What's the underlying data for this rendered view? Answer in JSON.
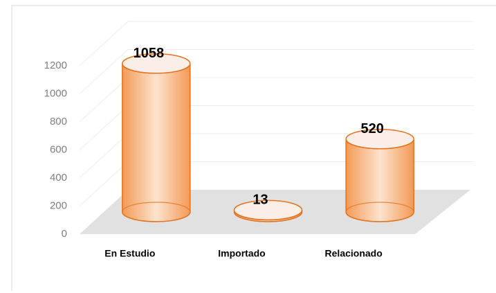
{
  "chart_data": {
    "type": "bar",
    "shape": "cylinder",
    "categories": [
      "En Estudio",
      "Importado",
      "Relacionado"
    ],
    "values": [
      1058,
      13,
      520
    ],
    "color": "#f4a460",
    "edge_color": "#e2731f",
    "ylim": [
      0,
      1200
    ],
    "yticks": [
      0,
      200,
      400,
      600,
      800,
      1000,
      1200
    ],
    "grid": true
  }
}
